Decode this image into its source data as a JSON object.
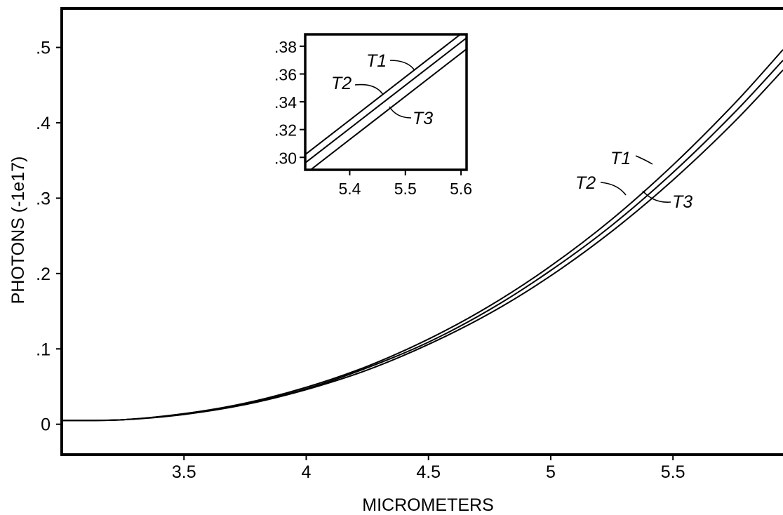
{
  "chart_data": [
    {
      "type": "line",
      "title": "",
      "xlabel": "MICROMETERS",
      "ylabel": "PHOTONS (-1e17)",
      "xlim": [
        3.0,
        5.95
      ],
      "ylim": [
        -0.045,
        0.535
      ],
      "xticks": [
        3.5,
        4,
        4.5,
        5,
        5.5
      ],
      "xtick_labels": [
        "3.5",
        "4",
        "4.5",
        "5",
        "5.5"
      ],
      "yticks": [
        0,
        0.1,
        0.2,
        0.3,
        0.4,
        0.5
      ],
      "ytick_labels": [
        "0",
        ".1",
        ".2",
        ".3",
        ".4",
        ".5"
      ],
      "grid": false,
      "series": [
        {
          "name": "T1",
          "x": [
            3.0,
            3.25,
            3.5,
            3.75,
            4.0,
            4.25,
            4.5,
            4.75,
            5.0,
            5.25,
            5.5,
            5.75,
            5.95
          ],
          "y": [
            0.005,
            0.006,
            0.014,
            0.028,
            0.049,
            0.077,
            0.113,
            0.157,
            0.21,
            0.272,
            0.344,
            0.425,
            0.497
          ]
        },
        {
          "name": "T2",
          "x": [
            3.0,
            3.25,
            3.5,
            3.75,
            4.0,
            4.25,
            4.5,
            4.75,
            5.0,
            5.25,
            5.5,
            5.75,
            5.95
          ],
          "y": [
            0.005,
            0.006,
            0.014,
            0.027,
            0.047,
            0.075,
            0.109,
            0.152,
            0.204,
            0.264,
            0.334,
            0.413,
            0.483
          ]
        },
        {
          "name": "T3",
          "x": [
            3.0,
            3.25,
            3.5,
            3.75,
            4.0,
            4.25,
            4.5,
            4.75,
            5.0,
            5.25,
            5.5,
            5.75,
            5.95
          ],
          "y": [
            0.005,
            0.006,
            0.013,
            0.026,
            0.046,
            0.072,
            0.106,
            0.147,
            0.197,
            0.256,
            0.324,
            0.401,
            0.47
          ]
        }
      ]
    },
    {
      "type": "line",
      "title": "",
      "xlabel": "",
      "ylabel": "",
      "xlim": [
        5.32,
        5.61
      ],
      "ylim": [
        0.287,
        0.387
      ],
      "xticks": [
        5.4,
        5.5,
        5.6
      ],
      "xtick_labels": [
        "5.4",
        "5.5",
        "5.6"
      ],
      "yticks": [
        0.3,
        0.32,
        0.34,
        0.36,
        0.38
      ],
      "ytick_labels": [
        ".30",
        ".32",
        ".34",
        ".36",
        ".38"
      ],
      "grid": false,
      "series": [
        {
          "name": "T1",
          "x": [
            5.32,
            5.61
          ],
          "y": [
            0.302,
            0.392
          ]
        },
        {
          "name": "T2",
          "x": [
            5.32,
            5.61
          ],
          "y": [
            0.296,
            0.386
          ]
        },
        {
          "name": "T3",
          "x": [
            5.32,
            5.61
          ],
          "y": [
            0.288,
            0.378
          ]
        }
      ]
    }
  ]
}
